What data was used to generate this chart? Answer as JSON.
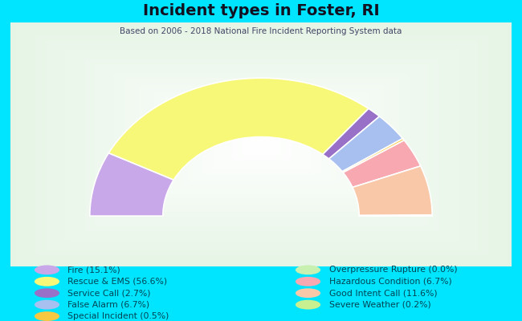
{
  "title": "Incident types in Foster, RI",
  "subtitle": "Based on 2006 - 2018 National Fire Incident Reporting System data",
  "background_color": "#00e5ff",
  "categories": [
    "Fire",
    "Rescue & EMS",
    "Service Call",
    "False Alarm",
    "Special Incident",
    "Overpressure Rupture",
    "Hazardous Condition",
    "Good Intent Call",
    "Severe Weather"
  ],
  "values": [
    15.1,
    56.6,
    2.7,
    6.7,
    0.5,
    0.0,
    6.7,
    11.6,
    0.2
  ],
  "colors": [
    "#c8a8e8",
    "#f8f878",
    "#9870c8",
    "#a8c0f0",
    "#f8c840",
    "#c8f0b0",
    "#f8a8b0",
    "#f8c8a8",
    "#c8f090"
  ]
}
